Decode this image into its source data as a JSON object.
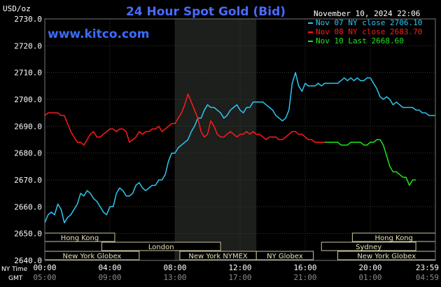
{
  "chart_data": {
    "type": "line",
    "title": "24 Hour Spot Gold (Bid)",
    "source_url": "www.kitco.com",
    "date_label": "November 10, 2024 22:06",
    "y_unit": "USD/oz",
    "ylim": [
      2640,
      2730
    ],
    "yticks": [
      2640,
      2650,
      2660,
      2670,
      2680,
      2690,
      2700,
      2710,
      2720,
      2730
    ],
    "ytick_labels": [
      "2640.0",
      "2650.0",
      "2660.0",
      "2670.0",
      "2680.0",
      "2690.0",
      "2700.0",
      "2710.0",
      "2720.0",
      "2730.0"
    ],
    "xlim": [
      0,
      24
    ],
    "x_row_labels": {
      "ny": "NY Time",
      "gmt": "GMT"
    },
    "xticks_ny": [
      {
        "h": 0,
        "label": "00:00"
      },
      {
        "h": 4,
        "label": "04:00"
      },
      {
        "h": 8,
        "label": "08:00"
      },
      {
        "h": 12,
        "label": "12:00"
      },
      {
        "h": 16,
        "label": "16:00"
      },
      {
        "h": 20,
        "label": "20:00"
      },
      {
        "h": 24,
        "label": "23:59"
      }
    ],
    "xticks_gmt": [
      {
        "h": 0,
        "label": "05:00"
      },
      {
        "h": 4,
        "label": "09:00"
      },
      {
        "h": 8,
        "label": "13:00"
      },
      {
        "h": 12,
        "label": "17:00"
      },
      {
        "h": 16,
        "label": "21:00"
      },
      {
        "h": 20,
        "label": "01:00"
      },
      {
        "h": 24,
        "label": "04:59"
      }
    ],
    "shaded_region": [
      8,
      13
    ],
    "sessions": [
      {
        "name": "Hong Kong",
        "start": 0,
        "end": 4.3,
        "row": 0
      },
      {
        "name": "London",
        "start": 3.5,
        "end": 10.8,
        "row": 1
      },
      {
        "name": "New York Globex",
        "start": 0,
        "end": 5.8,
        "row": 2
      },
      {
        "name": "New York NYMEX",
        "start": 8.3,
        "end": 13,
        "row": 2
      },
      {
        "name": "NY Globex",
        "start": 13,
        "end": 16.5,
        "row": 2
      },
      {
        "name": "Hong Kong",
        "start": 18.9,
        "end": 24,
        "row": 0
      },
      {
        "name": "Sydney",
        "start": 17,
        "end": 22.8,
        "row": 1
      },
      {
        "name": "New York Globex",
        "start": 18,
        "end": 24,
        "row": 2
      }
    ],
    "series": [
      {
        "name": "Nov 07 NY close 2706.10",
        "color": "#2ec5f0",
        "x": [
          0,
          0.2,
          0.4,
          0.6,
          0.8,
          1.0,
          1.2,
          1.4,
          1.6,
          1.8,
          2.0,
          2.2,
          2.4,
          2.6,
          2.8,
          3.0,
          3.2,
          3.4,
          3.6,
          3.8,
          4.0,
          4.2,
          4.4,
          4.6,
          4.8,
          5.0,
          5.2,
          5.4,
          5.6,
          5.8,
          6.0,
          6.2,
          6.4,
          6.6,
          6.8,
          7.0,
          7.2,
          7.4,
          7.6,
          7.8,
          8.0,
          8.2,
          8.4,
          8.6,
          8.8,
          9.0,
          9.2,
          9.4,
          9.6,
          9.8,
          10.0,
          10.2,
          10.4,
          10.6,
          10.8,
          11.0,
          11.2,
          11.4,
          11.6,
          11.8,
          12.0,
          12.2,
          12.4,
          12.6,
          12.8,
          13.0,
          13.2,
          13.4,
          13.6,
          13.8,
          14.0,
          14.2,
          14.4,
          14.6,
          14.8,
          15.0,
          15.2,
          15.4,
          15.6,
          15.8,
          16.0,
          16.2,
          16.4,
          16.6,
          16.8,
          17.0,
          17.2,
          17.4,
          17.6,
          17.8,
          18.0,
          18.2,
          18.4,
          18.6,
          18.8,
          19.0,
          19.2,
          19.4,
          19.6,
          19.8,
          20.0,
          20.2,
          20.4,
          20.6,
          20.8,
          21.0,
          21.2,
          21.4,
          21.6,
          21.8,
          22.0,
          22.2,
          22.4,
          22.6,
          22.8,
          23.0,
          23.2,
          23.4,
          23.6,
          23.8,
          24.0
        ],
        "values": [
          2654,
          2657,
          2658,
          2657,
          2661,
          2659,
          2654,
          2656,
          2657,
          2659,
          2661,
          2665,
          2664,
          2666,
          2665,
          2663,
          2662,
          2660,
          2658,
          2657,
          2660,
          2660,
          2665,
          2667,
          2666,
          2664,
          2664,
          2665,
          2668,
          2669,
          2667,
          2666,
          2667,
          2668,
          2668,
          2670,
          2670,
          2672,
          2677,
          2680,
          2680,
          2682,
          2683,
          2684,
          2685,
          2688,
          2690,
          2693,
          2693,
          2696,
          2698,
          2697,
          2697,
          2696,
          2695,
          2693,
          2694,
          2696,
          2697,
          2698,
          2696,
          2695,
          2697,
          2697,
          2699,
          2699,
          2699,
          2699,
          2698,
          2697,
          2696,
          2694,
          2693,
          2692,
          2693,
          2696,
          2706,
          2710,
          2705,
          2703,
          2706,
          2705,
          2705,
          2705,
          2706,
          2705,
          2706,
          2706,
          2706,
          2706,
          2706,
          2707,
          2708,
          2707,
          2708,
          2707,
          2708,
          2707,
          2707,
          2708,
          2708,
          2706,
          2704,
          2701,
          2700,
          2701,
          2700,
          2698,
          2699,
          2698,
          2697,
          2697,
          2697,
          2697,
          2696,
          2696,
          2695,
          2695,
          2694,
          2694,
          2694
        ]
      },
      {
        "name": "Nov 08 NY close 2683.70",
        "color": "#ff1a1a",
        "x": [
          0,
          0.2,
          0.4,
          0.6,
          0.8,
          1.0,
          1.2,
          1.4,
          1.6,
          1.8,
          2.0,
          2.2,
          2.4,
          2.6,
          2.8,
          3.0,
          3.2,
          3.4,
          3.6,
          3.8,
          4.0,
          4.2,
          4.4,
          4.6,
          4.8,
          5.0,
          5.2,
          5.4,
          5.6,
          5.8,
          6.0,
          6.2,
          6.4,
          6.6,
          6.8,
          7.0,
          7.2,
          7.4,
          7.6,
          7.8,
          8.0,
          8.2,
          8.4,
          8.6,
          8.8,
          9.0,
          9.2,
          9.4,
          9.6,
          9.8,
          10.0,
          10.2,
          10.4,
          10.6,
          10.8,
          11.0,
          11.2,
          11.4,
          11.6,
          11.8,
          12.0,
          12.2,
          12.4,
          12.6,
          12.8,
          13.0,
          13.2,
          13.4,
          13.6,
          13.8,
          14.0,
          14.2,
          14.4,
          14.6,
          14.8,
          15.0,
          15.2,
          15.4,
          15.6,
          15.8,
          16.0,
          16.2,
          16.4,
          16.6,
          16.8,
          17.0,
          17.2
        ],
        "values": [
          2694,
          2695,
          2695,
          2695,
          2695,
          2694,
          2694,
          2691,
          2688,
          2686,
          2684,
          2684,
          2683,
          2685,
          2687,
          2688,
          2686,
          2686,
          2687,
          2688,
          2689,
          2689,
          2688,
          2689,
          2689,
          2688,
          2684,
          2685,
          2686,
          2688,
          2687,
          2688,
          2688,
          2689,
          2689,
          2690,
          2688,
          2689,
          2690,
          2691,
          2691,
          2693,
          2695,
          2698,
          2702,
          2699,
          2696,
          2693,
          2688,
          2686,
          2687,
          2692,
          2690,
          2687,
          2686,
          2686,
          2687,
          2688,
          2687,
          2686,
          2687,
          2687,
          2688,
          2687,
          2688,
          2687,
          2687,
          2686,
          2685,
          2686,
          2686,
          2686,
          2685,
          2685,
          2686,
          2687,
          2688,
          2688,
          2687,
          2687,
          2686,
          2685,
          2685,
          2684,
          2684,
          2684,
          2684
        ]
      },
      {
        "name": "Nov 10 Last 2668.60",
        "color": "#1ee61e",
        "x": [
          17.2,
          17.4,
          17.6,
          17.8,
          18.0,
          18.2,
          18.4,
          18.6,
          18.8,
          19.0,
          19.2,
          19.4,
          19.6,
          19.8,
          20.0,
          20.2,
          20.4,
          20.6,
          20.8,
          21.0,
          21.2,
          21.4,
          21.6,
          21.8,
          22.0,
          22.2,
          22.4,
          22.6,
          22.8
        ],
        "values": [
          2684,
          2684,
          2684,
          2684,
          2684,
          2683,
          2683,
          2683,
          2684,
          2684,
          2684,
          2684,
          2683,
          2683,
          2684,
          2684,
          2685,
          2685,
          2683,
          2679,
          2675,
          2673,
          2673,
          2672,
          2671,
          2671,
          2668,
          2670,
          2670
        ]
      }
    ]
  }
}
